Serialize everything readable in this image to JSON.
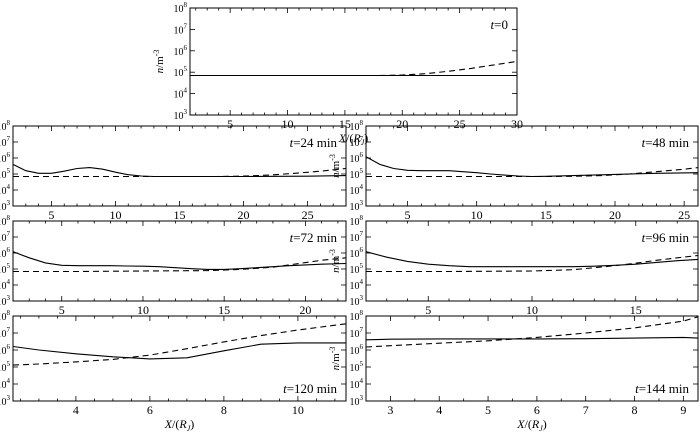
{
  "figure": {
    "ylabel_main": "n",
    "ylabel_unit": "/m",
    "ylabel_exp": "-3",
    "xlabel_main": "X",
    "xlabel_unit_open": "/(",
    "xlabel_R": "R",
    "xlabel_sub": "J",
    "xlabel_close": ")",
    "t_prefix": "t"
  },
  "chart_data": [
    {
      "type": "line",
      "time_label": "=0",
      "ylog": true,
      "ylim": [
        1000,
        100000000
      ],
      "xlim": [
        1.5,
        30
      ],
      "xticks": [
        5,
        10,
        15,
        20,
        25,
        30
      ],
      "yticks": [
        "10^3",
        "10^4",
        "10^5",
        "10^6",
        "10^7",
        "10^8"
      ],
      "series": [
        {
          "style": "solid",
          "x": [
            1.5,
            30
          ],
          "y": [
            70000,
            70000
          ]
        },
        {
          "style": "dashed",
          "x": [
            18,
            20,
            22,
            24,
            26,
            28,
            30
          ],
          "y": [
            70000,
            74000,
            85000,
            110000,
            150000,
            220000,
            320000
          ]
        }
      ]
    },
    {
      "type": "line",
      "time_label": "=24 min",
      "ylog": true,
      "ylim": [
        1000,
        100000000
      ],
      "xlim": [
        2,
        28
      ],
      "xticks": [
        5,
        10,
        15,
        20,
        25
      ],
      "yticks": [
        "10^3",
        "10^4",
        "10^5",
        "10^6",
        "10^7",
        "10^8"
      ],
      "series": [
        {
          "style": "solid",
          "x": [
            2,
            3,
            4,
            5,
            6,
            7,
            8,
            9,
            10,
            11,
            12,
            13,
            15,
            20,
            25,
            28
          ],
          "y": [
            400000,
            160000,
            110000,
            110000,
            150000,
            220000,
            250000,
            200000,
            130000,
            90000,
            75000,
            70000,
            70000,
            70000,
            73000,
            80000
          ]
        },
        {
          "style": "dashed",
          "x": [
            2,
            5,
            10,
            15,
            18,
            20,
            22,
            24,
            26,
            28
          ],
          "y": [
            70000,
            70000,
            70000,
            70000,
            70000,
            74000,
            85000,
            110000,
            150000,
            220000
          ]
        }
      ]
    },
    {
      "type": "line",
      "time_label": "=48 min",
      "ylog": true,
      "ylim": [
        1000,
        100000000
      ],
      "xlim": [
        2,
        26
      ],
      "xticks": [
        5,
        10,
        15,
        20,
        25
      ],
      "yticks": [
        "10^3",
        "10^4",
        "10^5",
        "10^6",
        "10^7",
        "10^8"
      ],
      "series": [
        {
          "style": "solid",
          "x": [
            2,
            3,
            4,
            5,
            6,
            7,
            8,
            9,
            10,
            11,
            12,
            13,
            14,
            15,
            17,
            20,
            23,
            26
          ],
          "y": [
            1200000,
            400000,
            220000,
            170000,
            160000,
            160000,
            160000,
            140000,
            120000,
            100000,
            85000,
            75000,
            70000,
            72000,
            80000,
            95000,
            110000,
            120000
          ]
        },
        {
          "style": "dashed",
          "x": [
            2,
            5,
            10,
            15,
            17,
            19,
            21,
            23,
            25,
            26
          ],
          "y": [
            70000,
            70000,
            70000,
            70000,
            72000,
            80000,
            100000,
            140000,
            200000,
            250000
          ]
        }
      ]
    },
    {
      "type": "line",
      "time_label": "=72 min",
      "ylog": true,
      "ylim": [
        1000,
        100000000
      ],
      "xlim": [
        2,
        22.5
      ],
      "xticks": [
        5,
        10,
        15,
        20
      ],
      "yticks": [
        "10^3",
        "10^4",
        "10^5",
        "10^6",
        "10^7",
        "10^8"
      ],
      "series": [
        {
          "style": "solid",
          "x": [
            2,
            3,
            4,
            5,
            6,
            7,
            8,
            9,
            10,
            11,
            12,
            13,
            14,
            15,
            16,
            17,
            18,
            19,
            20,
            21,
            22.5
          ],
          "y": [
            1200000,
            500000,
            240000,
            170000,
            160000,
            160000,
            160000,
            155000,
            150000,
            140000,
            120000,
            105000,
            95000,
            95000,
            105000,
            120000,
            140000,
            160000,
            180000,
            200000,
            220000
          ]
        },
        {
          "style": "dashed",
          "x": [
            2,
            6,
            10,
            14,
            16,
            18,
            19,
            20,
            21,
            22.5
          ],
          "y": [
            70000,
            70000,
            75000,
            80000,
            95000,
            130000,
            180000,
            250000,
            350000,
            500000
          ]
        }
      ]
    },
    {
      "type": "line",
      "time_label": "=96 min",
      "ylog": true,
      "ylim": [
        1000,
        100000000
      ],
      "xlim": [
        2,
        18
      ],
      "xticks": [
        5,
        10,
        15
      ],
      "yticks": [
        "10^3",
        "10^4",
        "10^5",
        "10^6",
        "10^7",
        "10^8"
      ],
      "series": [
        {
          "style": "solid",
          "x": [
            2,
            3,
            4,
            5,
            6,
            7,
            8,
            9,
            10,
            11,
            12,
            13,
            14,
            15,
            16,
            17,
            18
          ],
          "y": [
            1200000,
            550000,
            300000,
            200000,
            160000,
            140000,
            140000,
            140000,
            140000,
            140000,
            140000,
            150000,
            170000,
            200000,
            260000,
            330000,
            400000
          ]
        },
        {
          "style": "dashed",
          "x": [
            2,
            6,
            10,
            12,
            13,
            14,
            15,
            16,
            17,
            18
          ],
          "y": [
            70000,
            70000,
            75000,
            90000,
            120000,
            160000,
            230000,
            350000,
            500000,
            700000
          ]
        }
      ]
    },
    {
      "type": "line",
      "time_label": "=120 min",
      "ylog": true,
      "ylim": [
        1000,
        100000000
      ],
      "xlim": [
        2.3,
        11.3
      ],
      "xticks": [
        4,
        6,
        8,
        10
      ],
      "yticks": [
        "10^3",
        "10^4",
        "10^5",
        "10^6",
        "10^7",
        "10^8"
      ],
      "series": [
        {
          "style": "solid",
          "x": [
            2.3,
            3,
            4,
            5,
            6,
            7,
            8,
            9,
            10,
            11.3
          ],
          "y": [
            1600000,
            1000000,
            600000,
            400000,
            300000,
            350000,
            900000,
            2200000,
            2600000,
            2600000
          ]
        },
        {
          "style": "dashed",
          "x": [
            2.3,
            3,
            4,
            5,
            6,
            7,
            8,
            9,
            10,
            11.3
          ],
          "y": [
            130000,
            150000,
            200000,
            280000,
            500000,
            1200000,
            3000000,
            7000000,
            15000000,
            35000000
          ]
        }
      ]
    },
    {
      "type": "line",
      "time_label": "=144 min",
      "ylog": true,
      "ylim": [
        1000,
        100000000
      ],
      "xlim": [
        2.5,
        9.3
      ],
      "xticks": [
        3,
        4,
        5,
        6,
        7,
        8,
        9
      ],
      "yticks": [
        "10^3",
        "10^4",
        "10^5",
        "10^6",
        "10^7",
        "10^8"
      ],
      "series": [
        {
          "style": "solid",
          "x": [
            2.5,
            3,
            4,
            5,
            6,
            7,
            8,
            9,
            9.3
          ],
          "y": [
            4000000,
            4300000,
            4500000,
            4500000,
            4500000,
            4600000,
            5000000,
            5500000,
            5000000
          ]
        },
        {
          "style": "dashed",
          "x": [
            2.5,
            3,
            4,
            5,
            6,
            7,
            8,
            9,
            9.3
          ],
          "y": [
            1500000,
            1800000,
            2500000,
            3500000,
            5500000,
            10000000,
            20000000,
            50000000,
            90000000
          ]
        }
      ]
    }
  ]
}
